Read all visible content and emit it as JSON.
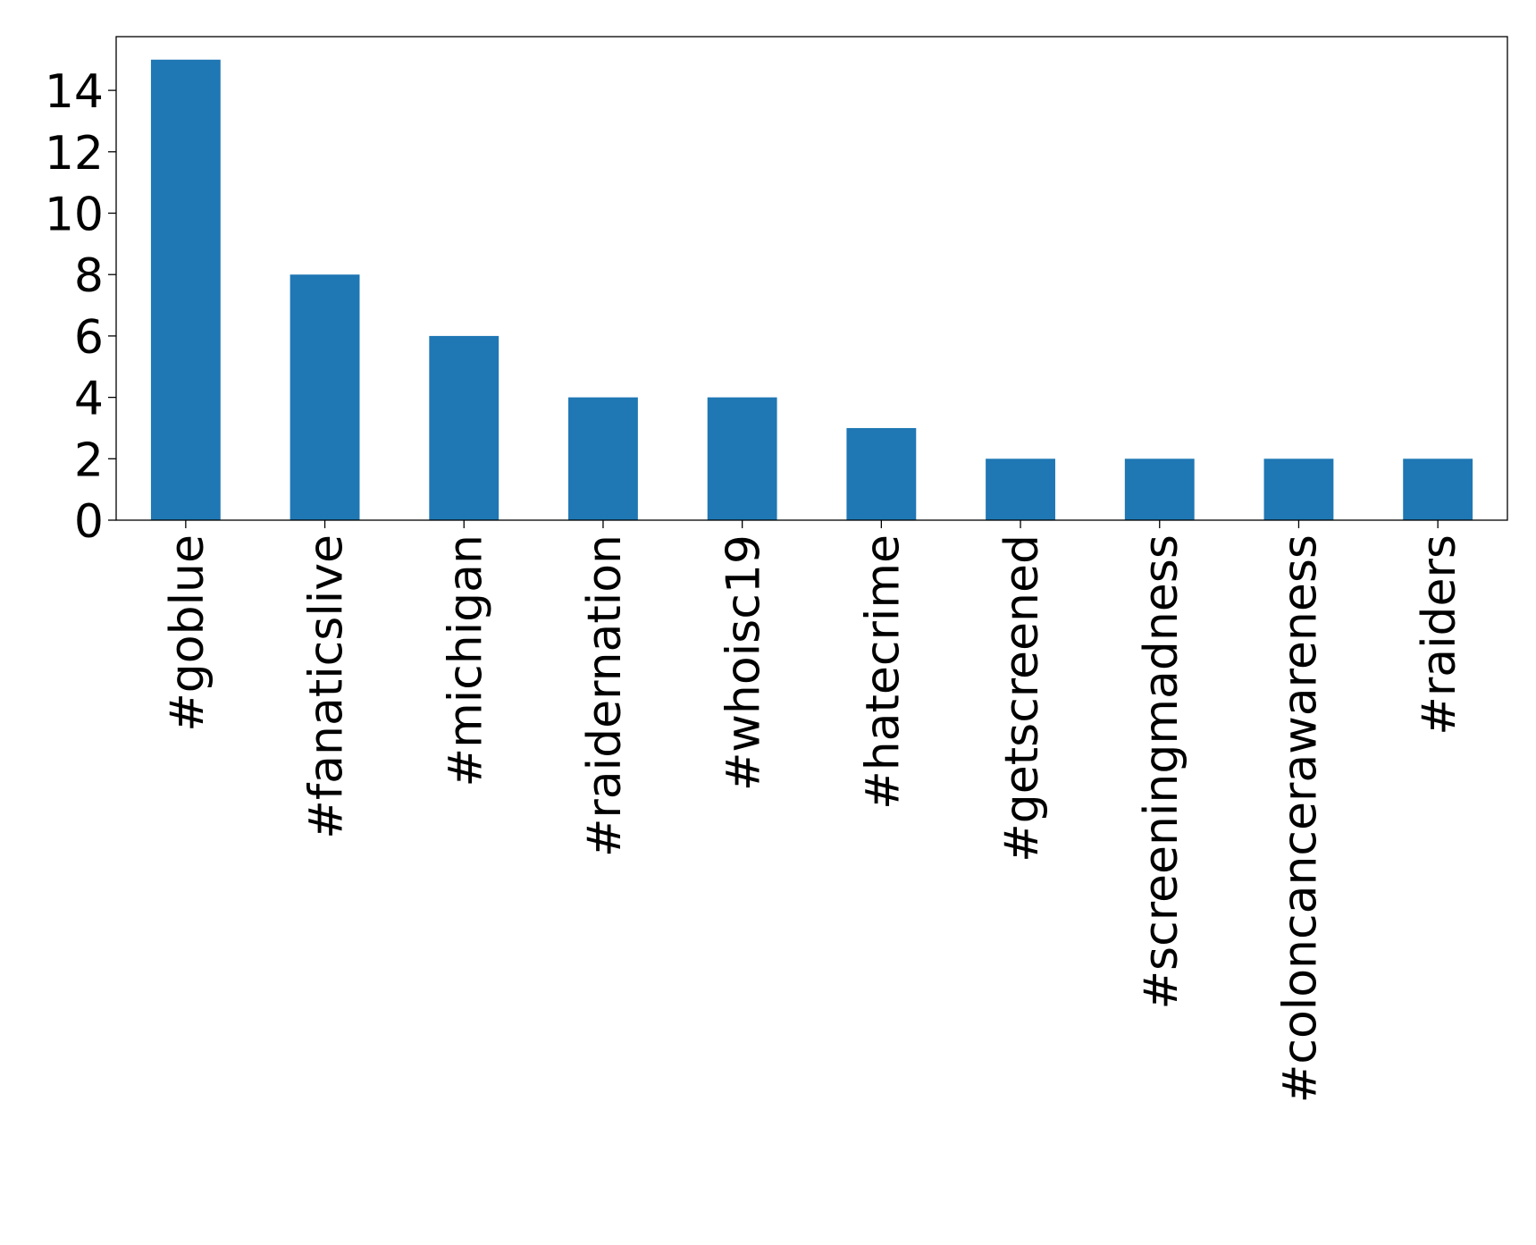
{
  "chart_data": {
    "type": "bar",
    "categories": [
      "#goblue",
      "#fanaticslive",
      "#michigan",
      "#raidernation",
      "#whoisc19",
      "#hatecrime",
      "#getscreened",
      "#screeningmadness",
      "#coloncancerawareness",
      "#raiders"
    ],
    "values": [
      15,
      8,
      6,
      4,
      4,
      3,
      2,
      2,
      2,
      2
    ],
    "color": "#1f77b4",
    "ylim": [
      0,
      15.75
    ],
    "yticks": [
      0,
      2,
      4,
      6,
      8,
      10,
      12,
      14
    ],
    "grid": false
  }
}
